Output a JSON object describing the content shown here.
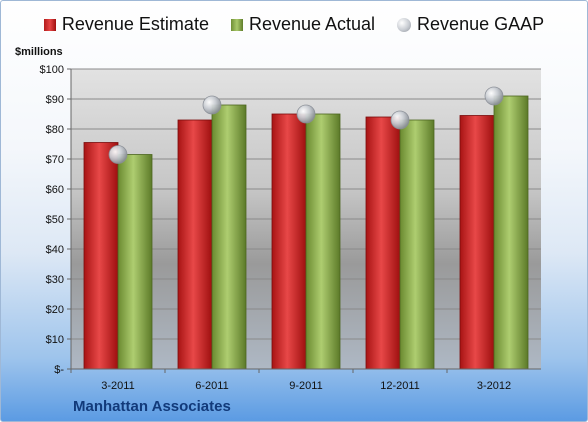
{
  "chart_data": {
    "type": "bar",
    "unit_label": "$millions",
    "company": "Manhattan Associates",
    "categories": [
      "3-2011",
      "6-2011",
      "9-2011",
      "12-2011",
      "3-2012"
    ],
    "series": [
      {
        "name": "Revenue Estimate",
        "kind": "bar",
        "color": "#d32a2a",
        "values": [
          75.5,
          83,
          85,
          84,
          84.5
        ]
      },
      {
        "name": "Revenue Actual",
        "kind": "bar",
        "color": "#8fb050",
        "values": [
          71.5,
          88,
          85,
          83,
          91
        ]
      },
      {
        "name": "Revenue GAAP",
        "kind": "marker",
        "color": "#b9bec6",
        "values": [
          71.5,
          88,
          85,
          83,
          91
        ]
      }
    ],
    "ylim": [
      0,
      100
    ],
    "yticks": [
      0,
      10,
      20,
      30,
      40,
      50,
      60,
      70,
      80,
      90,
      100
    ],
    "ytick_labels": [
      "$-",
      "$10",
      "$20",
      "$30",
      "$40",
      "$50",
      "$60",
      "$70",
      "$80",
      "$90",
      "$100"
    ],
    "grid": true,
    "legend_position": "top"
  }
}
